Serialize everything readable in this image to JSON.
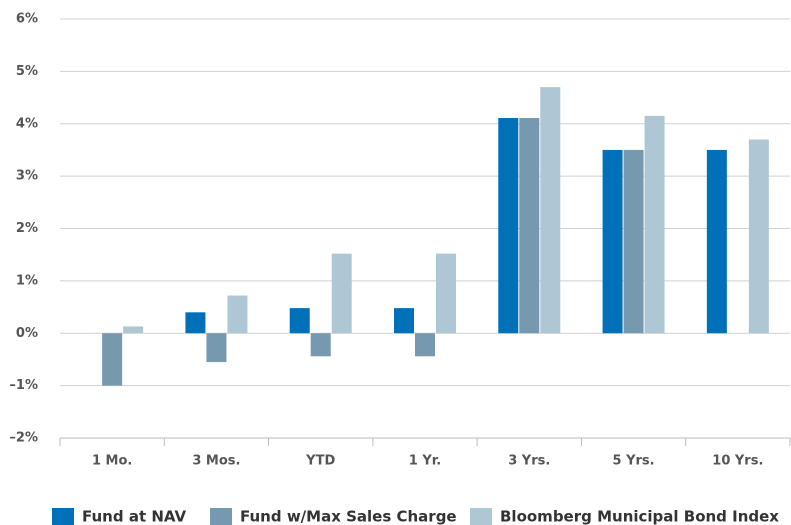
{
  "chart_data": {
    "type": "bar",
    "categories": [
      "1 Mo.",
      "3 Mos.",
      "YTD",
      "1 Yr.",
      "3 Yrs.",
      "5 Yrs.",
      "10 Yrs."
    ],
    "series": [
      {
        "name": "Fund at NAV",
        "color": "#0071b9",
        "values": [
          0,
          0.4,
          0.48,
          0.48,
          4.11,
          3.5,
          3.5
        ]
      },
      {
        "name": "Fund w/Max Sales Charge",
        "color": "#7699b0",
        "values": [
          -1.0,
          -0.55,
          -0.44,
          -0.44,
          4.11,
          3.5,
          null
        ]
      },
      {
        "name": "Bloomberg Municipal Bond Index",
        "color": "#afc7d5",
        "values": [
          0.13,
          0.72,
          1.52,
          1.52,
          4.7,
          4.15,
          3.7
        ]
      }
    ],
    "ylim": [
      -2,
      6
    ],
    "yticks": [
      {
        "value": -2,
        "label": "–2%"
      },
      {
        "value": -1,
        "label": "–1%"
      },
      {
        "value": 0,
        "label": "0%"
      },
      {
        "value": 1,
        "label": "1%"
      },
      {
        "value": 2,
        "label": "2%"
      },
      {
        "value": 3,
        "label": "3%"
      },
      {
        "value": 4,
        "label": "4%"
      },
      {
        "value": 5,
        "label": "5%"
      },
      {
        "value": 6,
        "label": "6%"
      }
    ],
    "grid": true,
    "legend": "bottom"
  }
}
